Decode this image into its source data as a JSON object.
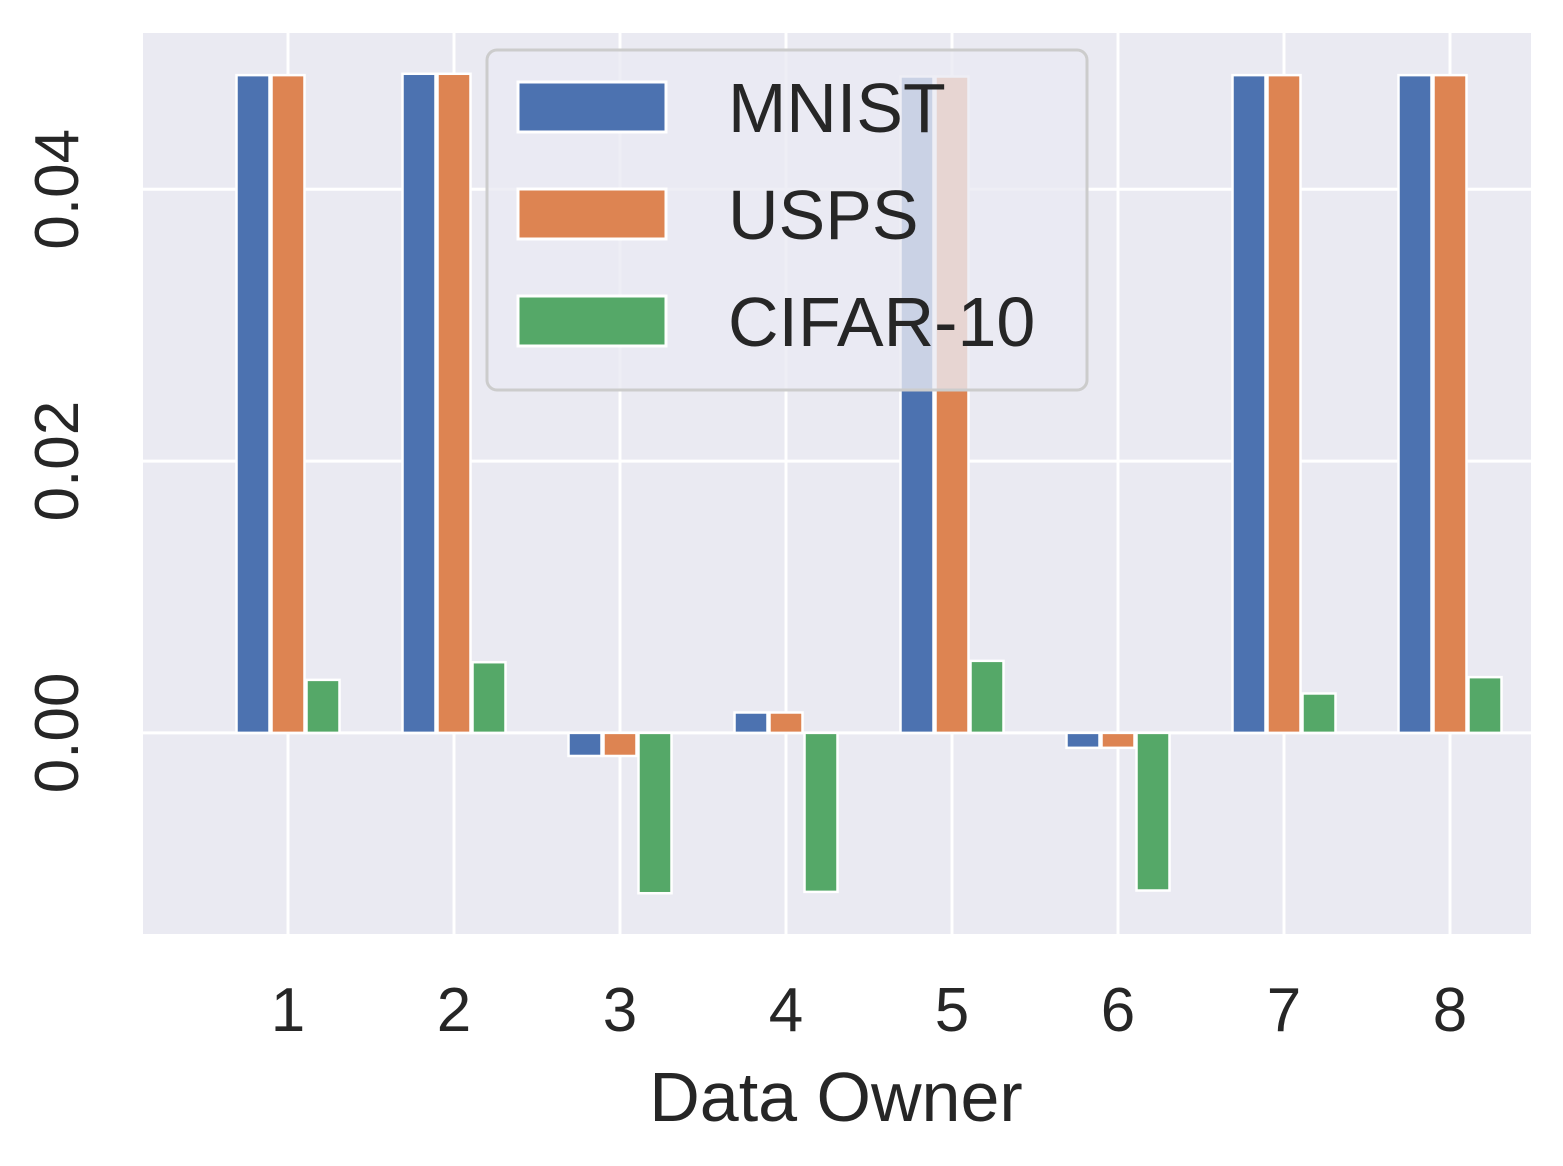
{
  "chart_data": {
    "type": "bar",
    "title": "",
    "xlabel": "Data Owner",
    "ylabel": "",
    "categories": [
      "1",
      "2",
      "3",
      "4",
      "5",
      "6",
      "7",
      "8"
    ],
    "series": [
      {
        "name": "MNIST",
        "color": "#4c72b0",
        "values": [
          0.0484,
          0.0485,
          -0.0017,
          0.0015,
          0.0483,
          -0.0011,
          0.0484,
          0.0484
        ]
      },
      {
        "name": "USPS",
        "color": "#dd8452",
        "values": [
          0.0484,
          0.0485,
          -0.0017,
          0.0015,
          0.0483,
          -0.0011,
          0.0484,
          0.0484
        ]
      },
      {
        "name": "CIFAR-10",
        "color": "#55a868",
        "values": [
          0.0039,
          0.0052,
          -0.0118,
          -0.0117,
          0.0053,
          -0.0116,
          0.0029,
          0.0041
        ]
      }
    ],
    "ylim": [
      -0.0148,
      0.0515
    ],
    "yticks": [
      0.0,
      0.02,
      0.04
    ],
    "ytick_labels": [
      "0.00",
      "0.02",
      "0.04"
    ],
    "grid": true,
    "legend_position": "top-center",
    "background": "#eaeaf2",
    "grid_color": "#ffffff",
    "text_color": "#262626"
  }
}
